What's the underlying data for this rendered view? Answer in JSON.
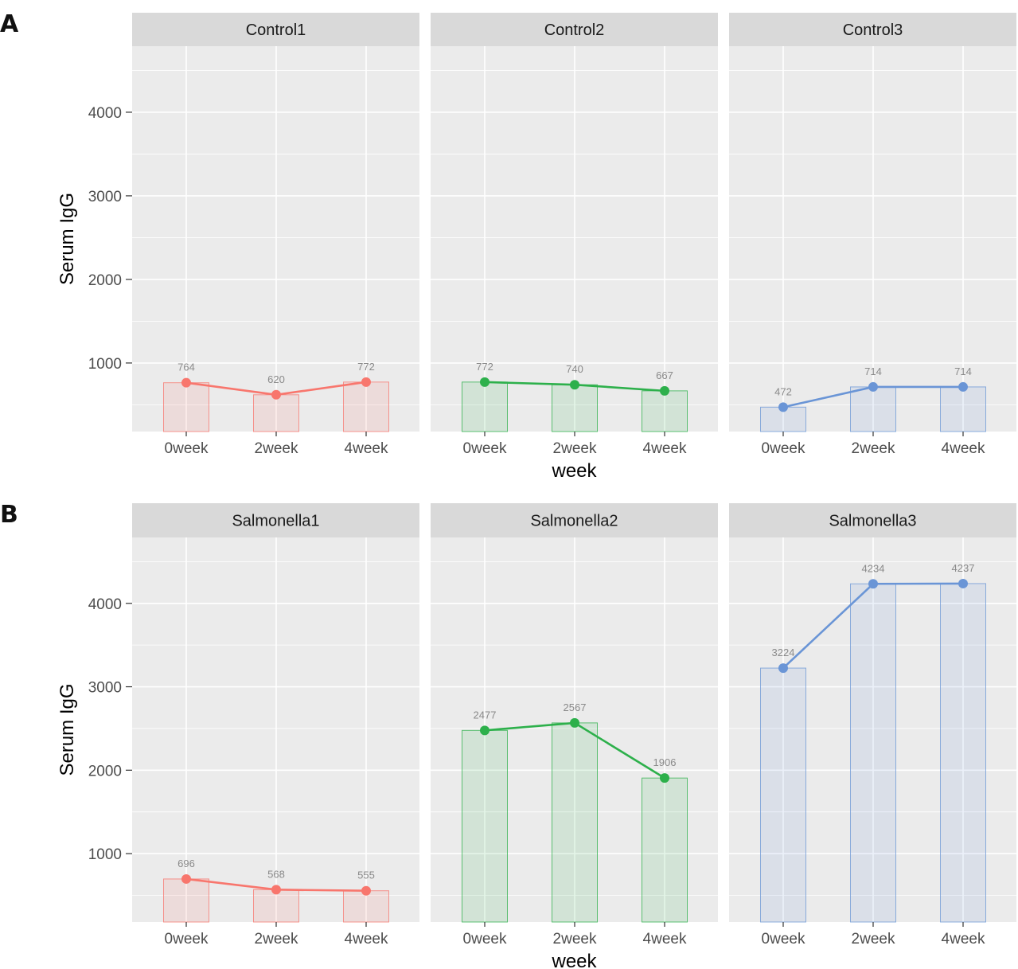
{
  "colors": {
    "panel_bg": "#EBEBEB",
    "strip_bg": "#D9D9D9",
    "grid": "#FFFFFF",
    "series": [
      "#F8766D",
      "#2DB04B",
      "#6A95D6"
    ]
  },
  "chart_data": [
    {
      "panel_label": "A",
      "type": "bar+line",
      "xlabel": "week",
      "ylabel": "Serum IgG",
      "ylim": [
        180,
        4790
      ],
      "yticks": [
        1000,
        2000,
        3000,
        4000
      ],
      "grid": true,
      "facets": [
        {
          "title": "Control1",
          "categories": [
            "0week",
            "2week",
            "4week"
          ],
          "values": [
            764,
            620,
            772
          ],
          "labels": [
            "764",
            "620",
            "772"
          ]
        },
        {
          "title": "Control2",
          "categories": [
            "0week",
            "2week",
            "4week"
          ],
          "values": [
            772,
            740,
            667
          ],
          "labels": [
            "772",
            "740",
            "667"
          ]
        },
        {
          "title": "Control3",
          "categories": [
            "0week",
            "2week",
            "4week"
          ],
          "values": [
            472,
            714,
            714
          ],
          "labels": [
            "472",
            "714",
            "714"
          ]
        }
      ]
    },
    {
      "panel_label": "B",
      "type": "bar+line",
      "xlabel": "week",
      "ylabel": "Serum IgG",
      "ylim": [
        180,
        4790
      ],
      "yticks": [
        1000,
        2000,
        3000,
        4000
      ],
      "grid": true,
      "facets": [
        {
          "title": "Salmonella1",
          "categories": [
            "0week",
            "2week",
            "4week"
          ],
          "values": [
            696,
            568,
            555
          ],
          "labels": [
            "696",
            "568",
            "555"
          ]
        },
        {
          "title": "Salmonella2",
          "categories": [
            "0week",
            "2week",
            "4week"
          ],
          "values": [
            2477,
            2567,
            1906
          ],
          "labels": [
            "2477",
            "2567",
            "1906"
          ]
        },
        {
          "title": "Salmonella3",
          "categories": [
            "0week",
            "2week",
            "4week"
          ],
          "values": [
            3224,
            4234,
            4237
          ],
          "labels": [
            "3224",
            "4234",
            "4237"
          ]
        }
      ]
    }
  ]
}
